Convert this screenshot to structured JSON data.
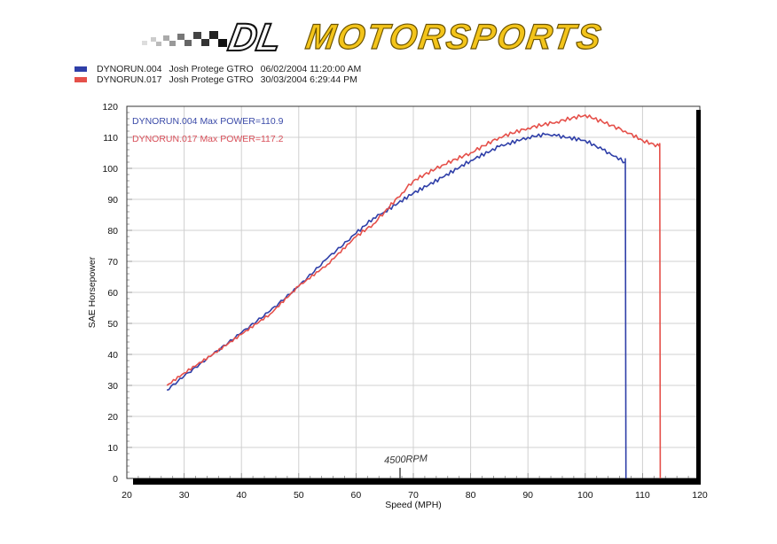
{
  "header": {
    "logo_prefix": "DL",
    "logo_text": "MOTORSPORTS"
  },
  "legend": [
    {
      "run": "DYNORUN.004",
      "vehicle": "Josh Protege GTRO",
      "datetime": "06/02/2004 11:20:00 AM",
      "color": "#2f3fa8"
    },
    {
      "run": "DYNORUN.017",
      "vehicle": "Josh Protege GTRO",
      "datetime": "30/03/2004 6:29:44 PM",
      "color": "#e5504a"
    }
  ],
  "annotations": {
    "max_power_1": "DYNORUN.004  Max POWER=110.9",
    "max_power_2": "DYNORUN.017  Max POWER=117.2",
    "handwritten": "4500RPM",
    "handwritten_x": 68
  },
  "chart_data": {
    "type": "line",
    "title": "",
    "xlabel": "Speed (MPH)",
    "ylabel": "SAE Horsepower",
    "xlim": [
      20,
      120
    ],
    "ylim": [
      0,
      120
    ],
    "xticks": [
      20,
      30,
      40,
      50,
      60,
      70,
      80,
      90,
      100,
      110,
      120
    ],
    "yticks": [
      0,
      10,
      20,
      30,
      40,
      50,
      60,
      70,
      80,
      90,
      100,
      110,
      120
    ],
    "grid": true,
    "legend_position": "top-left, above plot",
    "series": [
      {
        "name": "DYNORUN.004",
        "color": "#2f3fa8",
        "max_power": 110.9,
        "x": [
          27,
          30,
          35,
          40,
          45,
          50,
          55,
          60,
          63,
          65,
          70,
          75,
          80,
          85,
          90,
          93,
          95,
          100,
          103,
          107,
          107,
          107.1
        ],
        "y": [
          28.5,
          33,
          40,
          47,
          54,
          62,
          71,
          79,
          84,
          86,
          92,
          97,
          102.5,
          107,
          110,
          110.9,
          110.5,
          109,
          106,
          102,
          103,
          0
        ]
      },
      {
        "name": "DYNORUN.017",
        "color": "#e5504a",
        "max_power": 117.2,
        "x": [
          27,
          30,
          35,
          40,
          45,
          50,
          55,
          60,
          63,
          65,
          68,
          70,
          75,
          80,
          85,
          90,
          95,
          100,
          103,
          107,
          110,
          113,
          113,
          113.1
        ],
        "y": [
          30,
          34,
          40,
          46.5,
          53,
          62,
          69,
          78,
          82,
          86,
          92,
          96,
          101,
          105,
          110,
          113,
          115,
          117.2,
          115,
          112,
          109,
          107,
          108,
          0
        ]
      }
    ]
  }
}
